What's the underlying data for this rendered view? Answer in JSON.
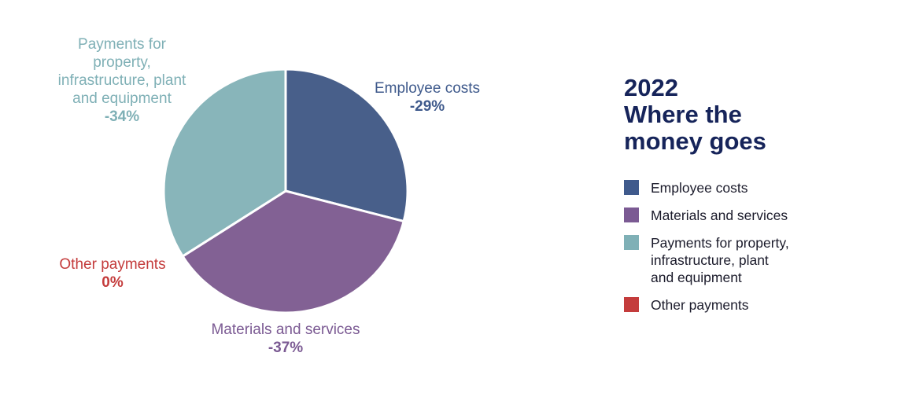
{
  "title_lines": [
    "2022",
    "Where the",
    "money goes"
  ],
  "legend": [
    {
      "label": "Employee costs",
      "color": "#3f5a8c"
    },
    {
      "label": "Materials and services",
      "color": "#7b5a93"
    },
    {
      "label": "Payments for property,\ninfrastructure, plant\nand equipment",
      "color": "#7fb0b6"
    },
    {
      "label": "Other payments",
      "color": "#c43c3c"
    }
  ],
  "chart_data": {
    "type": "pie",
    "title": "2022 Where the money goes",
    "slices": [
      {
        "name": "Employee costs",
        "value": 29,
        "label_lines": [
          "Employee costs"
        ],
        "value_label": "-29%",
        "color": "#485f8a",
        "label_color": "#3f5a8c"
      },
      {
        "name": "Materials and services",
        "value": 37,
        "label_lines": [
          "Materials and services"
        ],
        "value_label": "-37%",
        "color": "#826194",
        "label_color": "#7b5a93"
      },
      {
        "name": "Payments for property, infrastructure, plant and equipment",
        "value": 34,
        "label_lines": [
          "Payments for",
          "property,",
          "infrastructure, plant",
          "and equipment"
        ],
        "value_label": "-34%",
        "color": "#88b5ba",
        "label_color": "#7fb0b6"
      },
      {
        "name": "Other payments",
        "value": 0,
        "label_lines": [
          "Other payments"
        ],
        "value_label": "0%",
        "color": "#c43c3c",
        "label_color": "#c43c3c"
      }
    ],
    "start_angle_deg": 0,
    "direction": "clockwise",
    "legend_placement": "right"
  }
}
